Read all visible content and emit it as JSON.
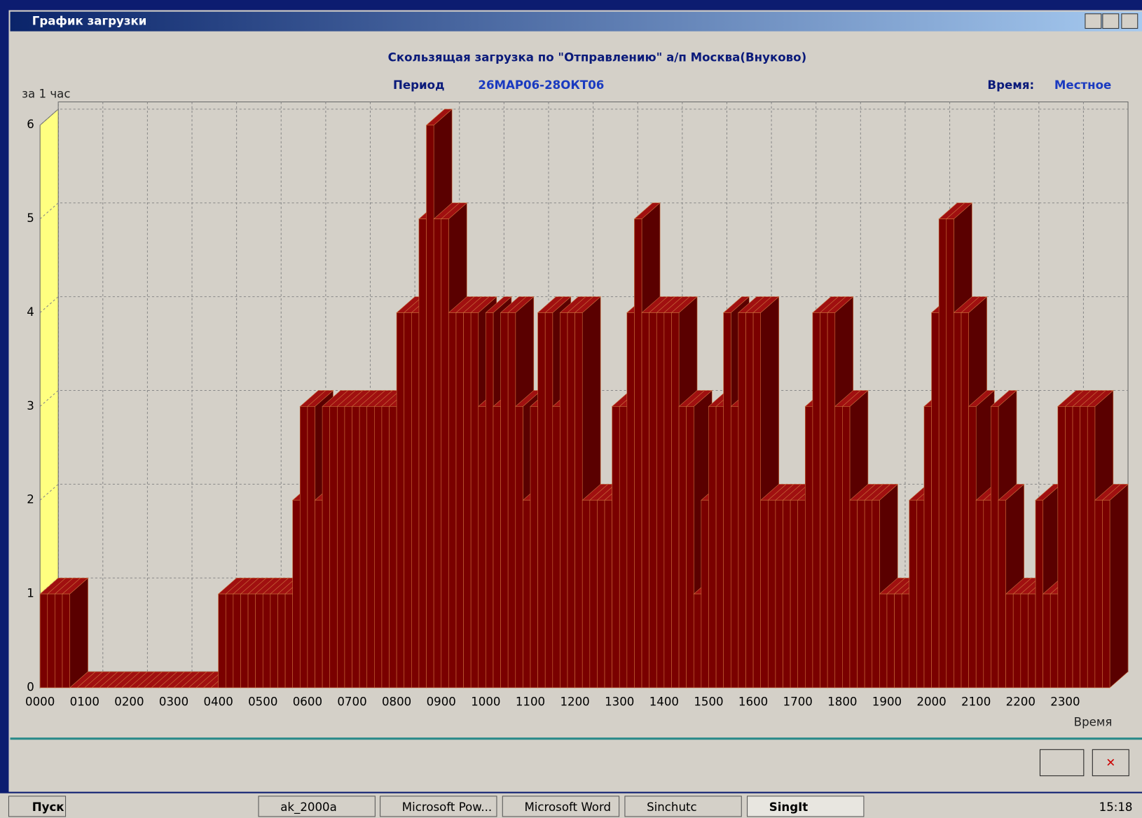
{
  "window": {
    "title": "График загрузки"
  },
  "chart_data": {
    "type": "bar3d",
    "title": "Скользящая загрузка по \"Отправлению\" а/п Москва(Внуково)",
    "period_label": "Период",
    "period": "26МАР06-28ОКТ06",
    "time_label": "Время:",
    "time_value": "Местное",
    "y_label": "за 1 час",
    "x_label": "Время",
    "color": "#7a0000",
    "grid": true,
    "ylim": [
      0,
      6
    ],
    "yticks": [
      0,
      1,
      2,
      3,
      4,
      5,
      6
    ],
    "categories": [
      "0000",
      null,
      null,
      null,
      null,
      null,
      "0100",
      null,
      null,
      null,
      null,
      null,
      "0200",
      null,
      null,
      null,
      null,
      null,
      "0300",
      null,
      null,
      null,
      null,
      null,
      "0400",
      null,
      null,
      null,
      null,
      null,
      "0500",
      null,
      null,
      null,
      null,
      null,
      "0600",
      null,
      null,
      null,
      null,
      null,
      "0700",
      null,
      null,
      null,
      null,
      null,
      "0800",
      null,
      null,
      null,
      null,
      null,
      "0900",
      null,
      null,
      null,
      null,
      null,
      "1000",
      null,
      null,
      null,
      null,
      null,
      "1100",
      null,
      null,
      null,
      null,
      null,
      "1200",
      null,
      null,
      null,
      null,
      null,
      "1300",
      null,
      null,
      null,
      null,
      null,
      "1400",
      null,
      null,
      null,
      null,
      null,
      "1500",
      null,
      null,
      null,
      null,
      null,
      "1600",
      null,
      null,
      null,
      null,
      null,
      "1700",
      null,
      null,
      null,
      null,
      null,
      "1800",
      null,
      null,
      null,
      null,
      null,
      "1900",
      null,
      null,
      null,
      null,
      null,
      "2000",
      null,
      null,
      null,
      null,
      null,
      "2100",
      null,
      null,
      null,
      null,
      null,
      "2200",
      null,
      null,
      null,
      null,
      null,
      "2300",
      null,
      null,
      null,
      null,
      null
    ],
    "values": [
      1,
      1,
      1,
      1,
      0,
      0,
      0,
      0,
      0,
      0,
      0,
      0,
      0,
      0,
      0,
      0,
      0,
      0,
      0,
      0,
      0,
      0,
      0,
      0,
      1,
      1,
      1,
      1,
      1,
      1,
      1,
      1,
      1,
      1,
      2,
      3,
      3,
      2,
      3,
      3,
      3,
      3,
      3,
      3,
      3,
      3,
      3,
      3,
      4,
      4,
      4,
      5,
      6,
      5,
      5,
      4,
      4,
      4,
      4,
      3,
      4,
      3,
      4,
      4,
      3,
      2,
      3,
      4,
      4,
      3,
      4,
      4,
      4,
      2,
      2,
      2,
      2,
      3,
      3,
      4,
      5,
      4,
      4,
      4,
      4,
      4,
      3,
      3,
      1,
      2,
      3,
      3,
      4,
      3,
      4,
      4,
      4,
      2,
      2,
      2,
      2,
      2,
      2,
      3,
      4,
      4,
      4,
      3,
      3,
      2,
      2,
      2,
      2,
      1,
      1,
      1,
      1,
      2,
      2,
      3,
      4,
      5,
      5,
      4,
      4,
      3,
      2,
      2,
      3,
      2,
      1,
      1,
      1,
      1,
      2,
      1,
      1,
      3,
      3,
      3,
      3,
      3,
      2,
      2
    ]
  },
  "taskbar": {
    "start": "Пуск",
    "items": [
      "ak_2000a",
      "Microsoft Pow...",
      "Microsoft Word",
      "Sinchutc",
      "SingIt"
    ],
    "clock": "15:18"
  }
}
